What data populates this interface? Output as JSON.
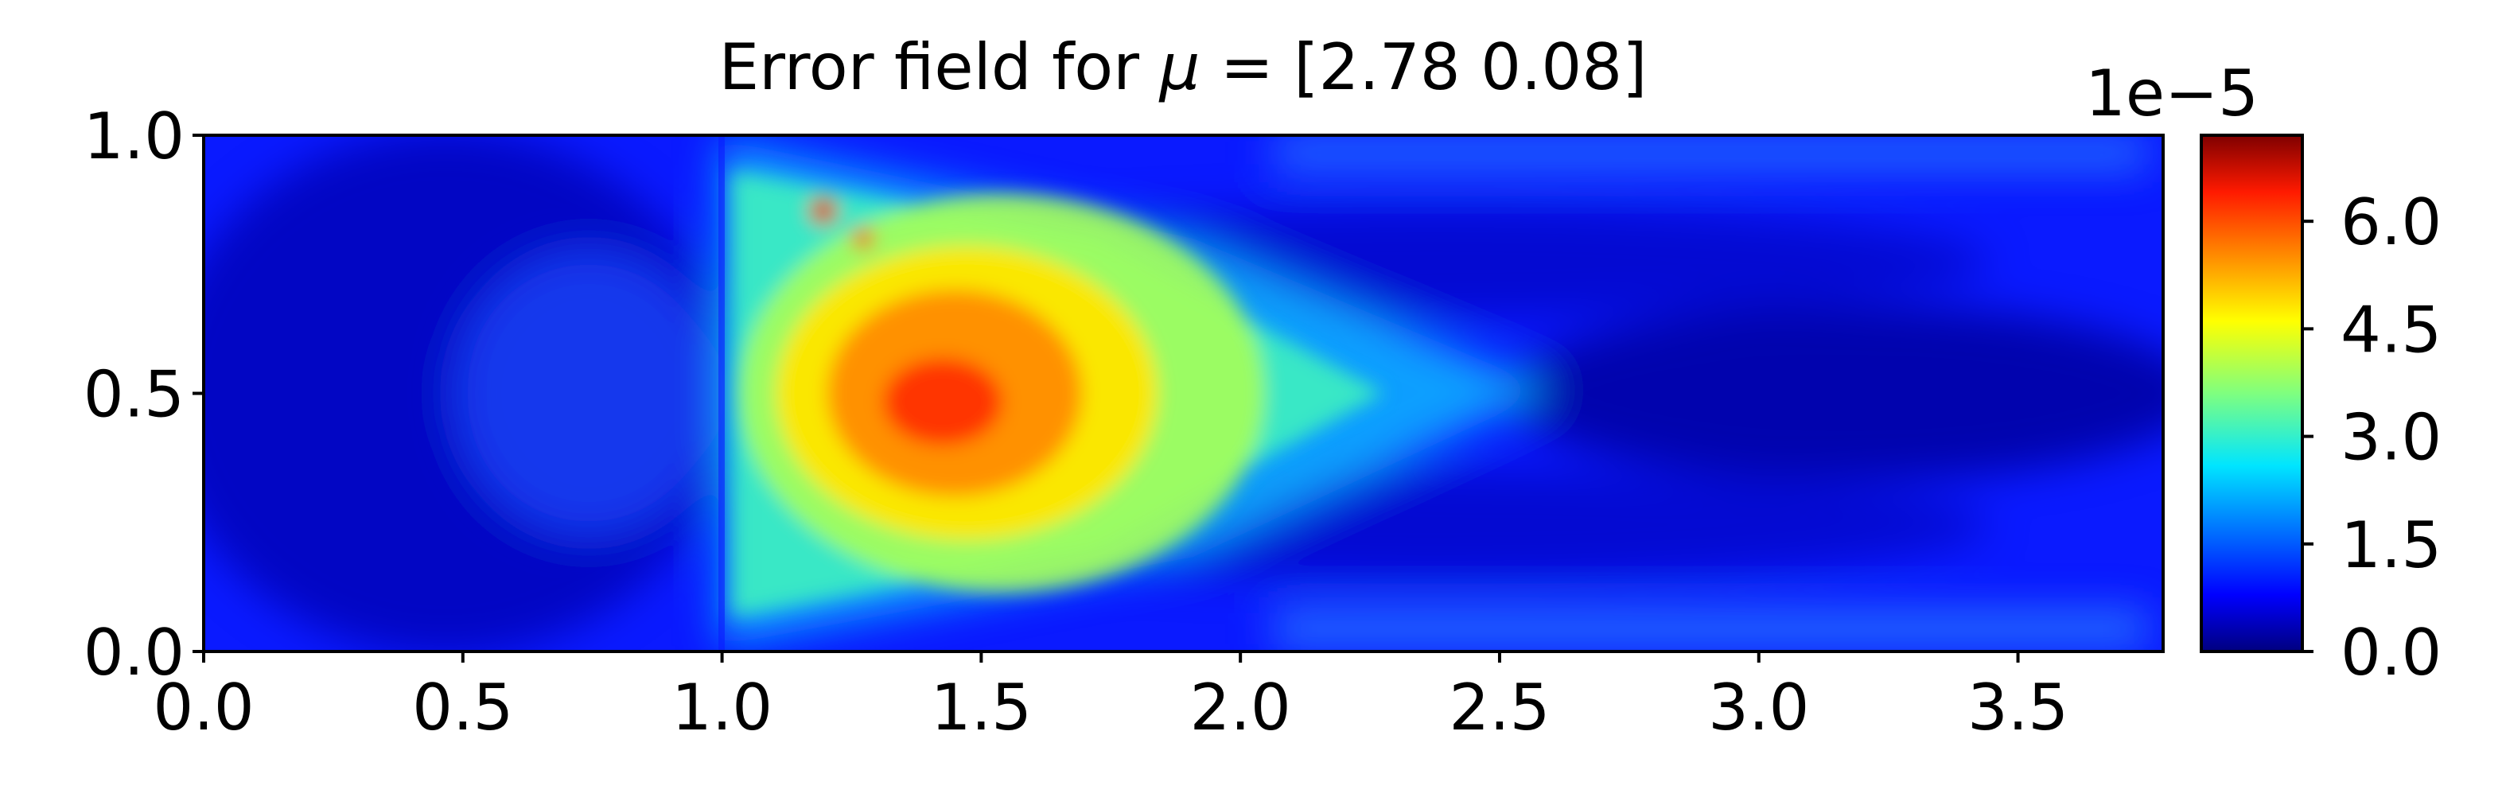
{
  "chart_data": {
    "type": "heatmap",
    "title_prefix": "Error field for ",
    "title_symbol": "μ",
    "title_suffix": " = [2.78 0.08]",
    "xlabel": "",
    "ylabel": "",
    "xlim": [
      0.0,
      3.78
    ],
    "ylim": [
      0.0,
      1.0
    ],
    "x_ticks": [
      "0.0",
      "0.5",
      "1.0",
      "1.5",
      "2.0",
      "2.5",
      "3.0",
      "3.5"
    ],
    "y_ticks": [
      "0.0",
      "0.5",
      "1.0"
    ],
    "colorbar": {
      "colormap": "jet",
      "range": [
        0.0,
        7.2
      ],
      "ticks": [
        "0.0",
        "1.5",
        "3.0",
        "4.5",
        "6.0"
      ],
      "offset_label": "1e−5"
    },
    "field_peak": {
      "x": 1.45,
      "y": 0.52,
      "value": 7.0
    }
  }
}
